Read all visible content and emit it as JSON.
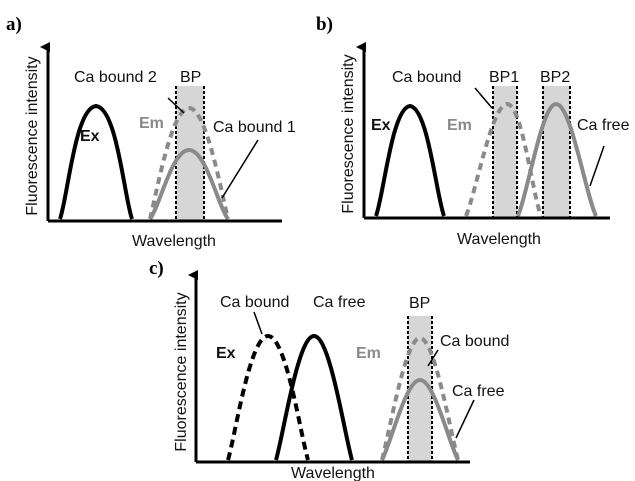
{
  "panels": [
    {
      "label": "a)",
      "ylabel": "Fluorescence intensity",
      "xlabel": "Wavelength",
      "texts": {
        "ex": "Ex",
        "em": "Em",
        "ca_bound_2": "Ca bound 2",
        "ca_bound_1": "Ca bound 1",
        "bp": "BP"
      }
    },
    {
      "label": "b)",
      "ylabel": "Fluorescence intensity",
      "xlabel": "Wavelength",
      "texts": {
        "ex": "Ex",
        "em": "Em",
        "ca_bound": "Ca bound",
        "ca_free": "Ca free",
        "bp1": "BP1",
        "bp2": "BP2"
      }
    },
    {
      "label": "c)",
      "ylabel": "Fluorescence intensity",
      "xlabel": "Wavelength",
      "texts": {
        "ex": "Ex",
        "em": "Em",
        "ca_bound_ex": "Ca bound",
        "ca_free_ex": "Ca free",
        "bp": "BP",
        "ca_bound_em": "Ca bound",
        "ca_free_em": "Ca free"
      }
    }
  ],
  "colors": {
    "black": "#000000",
    "gray": "#8a8a8a",
    "band": "#d6d6d6"
  }
}
